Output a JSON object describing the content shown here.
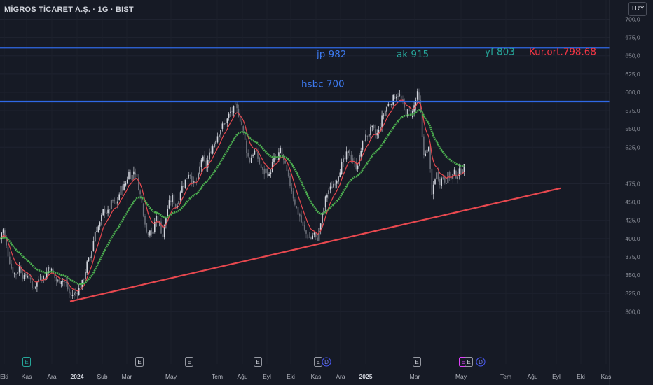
{
  "header": {
    "title": "MİGROS TİCARET A.Ş. · 1G · BIST",
    "currency": "TRY"
  },
  "chart_data": {
    "type": "candlestick",
    "title": "MİGROS TİCARET A.Ş. · 1G · BIST",
    "ylim": [
      290,
      712
    ],
    "y_ticks": [
      "700,0",
      "675,0",
      "650,0",
      "625,0",
      "600,0",
      "575,0",
      "550,0",
      "525,0",
      "475,0",
      "450,0",
      "425,0",
      "400,0",
      "375,0",
      "350,0",
      "325,0",
      "300,0"
    ],
    "x_ticks": [
      "Eki",
      "Kas",
      "Ara",
      "2024",
      "Şub",
      "Mar",
      "May",
      "Tem",
      "Ağu",
      "Eyl",
      "Eki",
      "Kas",
      "Ara",
      "2025",
      "Mar",
      "May",
      "Tem",
      "Ağu",
      "Eyl",
      "Eki",
      "Kas"
    ],
    "x_ticks_bold": [
      "2024",
      "2025"
    ],
    "price_path": [
      [
        0,
        400
      ],
      [
        4,
        415
      ],
      [
        10,
        385
      ],
      [
        16,
        360
      ],
      [
        22,
        350
      ],
      [
        28,
        362
      ],
      [
        34,
        345
      ],
      [
        40,
        352
      ],
      [
        46,
        332
      ],
      [
        52,
        338
      ],
      [
        58,
        350
      ],
      [
        64,
        345
      ],
      [
        70,
        365
      ],
      [
        76,
        350
      ],
      [
        82,
        340
      ],
      [
        88,
        345
      ],
      [
        94,
        338
      ],
      [
        100,
        322
      ],
      [
        106,
        325
      ],
      [
        112,
        330
      ],
      [
        118,
        340
      ],
      [
        124,
        365
      ],
      [
        130,
        378
      ],
      [
        136,
        412
      ],
      [
        142,
        418
      ],
      [
        148,
        440
      ],
      [
        154,
        435
      ],
      [
        160,
        452
      ],
      [
        166,
        445
      ],
      [
        172,
        468
      ],
      [
        178,
        472
      ],
      [
        184,
        490
      ],
      [
        188,
        484
      ],
      [
        192,
        496
      ],
      [
        198,
        470
      ],
      [
        202,
        450
      ],
      [
        206,
        430
      ],
      [
        210,
        405
      ],
      [
        214,
        415
      ],
      [
        218,
        402
      ],
      [
        222,
        432
      ],
      [
        228,
        420
      ],
      [
        232,
        402
      ],
      [
        236,
        425
      ],
      [
        240,
        445
      ],
      [
        246,
        456
      ],
      [
        252,
        442
      ],
      [
        258,
        468
      ],
      [
        264,
        478
      ],
      [
        270,
        492
      ],
      [
        276,
        474
      ],
      [
        282,
        480
      ],
      [
        288,
        512
      ],
      [
        294,
        498
      ],
      [
        300,
        518
      ],
      [
        306,
        532
      ],
      [
        312,
        545
      ],
      [
        318,
        555
      ],
      [
        324,
        562
      ],
      [
        328,
        572
      ],
      [
        332,
        575
      ],
      [
        336,
        580
      ],
      [
        340,
        572
      ],
      [
        344,
        560
      ],
      [
        348,
        542
      ],
      [
        352,
        520
      ],
      [
        356,
        505
      ],
      [
        360,
        515
      ],
      [
        364,
        520
      ],
      [
        368,
        510
      ],
      [
        372,
        498
      ],
      [
        376,
        488
      ],
      [
        380,
        495
      ],
      [
        384,
        485
      ],
      [
        388,
        500
      ],
      [
        392,
        510
      ],
      [
        396,
        505
      ],
      [
        400,
        524
      ],
      [
        404,
        508
      ],
      [
        408,
        495
      ],
      [
        412,
        480
      ],
      [
        416,
        468
      ],
      [
        420,
        452
      ],
      [
        424,
        438
      ],
      [
        428,
        430
      ],
      [
        432,
        416
      ],
      [
        436,
        408
      ],
      [
        440,
        402
      ],
      [
        444,
        400
      ],
      [
        448,
        408
      ],
      [
        452,
        395
      ],
      [
        456,
        415
      ],
      [
        460,
        430
      ],
      [
        464,
        452
      ],
      [
        468,
        465
      ],
      [
        472,
        468
      ],
      [
        476,
        475
      ],
      [
        480,
        480
      ],
      [
        484,
        492
      ],
      [
        488,
        502
      ],
      [
        492,
        508
      ],
      [
        496,
        518
      ],
      [
        500,
        515
      ],
      [
        504,
        505
      ],
      [
        508,
        498
      ],
      [
        512,
        506
      ],
      [
        516,
        525
      ],
      [
        520,
        538
      ],
      [
        524,
        540
      ],
      [
        528,
        548
      ],
      [
        532,
        550
      ],
      [
        536,
        542
      ],
      [
        540,
        544
      ],
      [
        544,
        562
      ],
      [
        548,
        572
      ],
      [
        552,
        580
      ],
      [
        556,
        585
      ],
      [
        560,
        590
      ],
      [
        564,
        595
      ],
      [
        568,
        598
      ],
      [
        572,
        592
      ],
      [
        576,
        580
      ],
      [
        580,
        572
      ],
      [
        584,
        575
      ],
      [
        588,
        570
      ],
      [
        592,
        585
      ],
      [
        596,
        598
      ],
      [
        600,
        575
      ],
      [
        604,
        520
      ],
      [
        608,
        512
      ],
      [
        612,
        530
      ],
      [
        616,
        455
      ],
      [
        620,
        482
      ],
      [
        624,
        490
      ],
      [
        628,
        478
      ],
      [
        632,
        485
      ],
      [
        636,
        478
      ],
      [
        640,
        488
      ],
      [
        644,
        482
      ],
      [
        648,
        490
      ],
      [
        652,
        486
      ],
      [
        656,
        492
      ],
      [
        660,
        494
      ],
      [
        664,
        500
      ]
    ],
    "series": [
      {
        "name": "",
        "color": "#e8484f",
        "kind": "ema_fast"
      },
      {
        "name": "",
        "color": "#4caf50",
        "kind": "ema_slow"
      }
    ],
    "levels": [
      {
        "value": 661.0,
        "label": "661,0",
        "color": "#2f68e5"
      },
      {
        "value": 587.5,
        "label": "587,5",
        "color": "#2f68e5"
      }
    ],
    "last_price": {
      "value": 501.0,
      "label": "501,0",
      "color": "#1a8a79"
    },
    "trendline": {
      "from": [
        100,
        314
      ],
      "to": [
        800,
        469
      ],
      "color": "#e8484f"
    },
    "annotations": [
      {
        "text": "jp 982",
        "color": "#3d7af0",
        "anchor_x": 452,
        "anchor_y": 648
      },
      {
        "text": "hsbc 700",
        "color": "#3d7af0",
        "anchor_x": 430,
        "anchor_y": 607
      },
      {
        "text": "ak 915",
        "color": "#26a69a",
        "anchor_x": 566,
        "anchor_y": 648
      },
      {
        "text": "yf 803",
        "color": "#26a69a",
        "anchor_x": 692,
        "anchor_y": 651
      },
      {
        "text": "Kur.ort.798.68",
        "color": "#f23645",
        "anchor_x": 755,
        "anchor_y": 651
      }
    ],
    "events": [
      {
        "x": 38,
        "label": "E",
        "type": "earnings-green"
      },
      {
        "x": 199,
        "label": "E",
        "type": "earnings"
      },
      {
        "x": 270,
        "label": "E",
        "type": "earnings"
      },
      {
        "x": 368,
        "label": "E",
        "type": "earnings"
      },
      {
        "x": 454,
        "label": "E",
        "type": "earnings"
      },
      {
        "x": 466,
        "label": "D",
        "type": "dividend"
      },
      {
        "x": 595,
        "label": "E",
        "type": "earnings"
      },
      {
        "x": 661,
        "label": "E",
        "type": "earnings-purple"
      },
      {
        "x": 669,
        "label": "E",
        "type": "earnings"
      },
      {
        "x": 686,
        "label": "D",
        "type": "dividend"
      }
    ]
  }
}
